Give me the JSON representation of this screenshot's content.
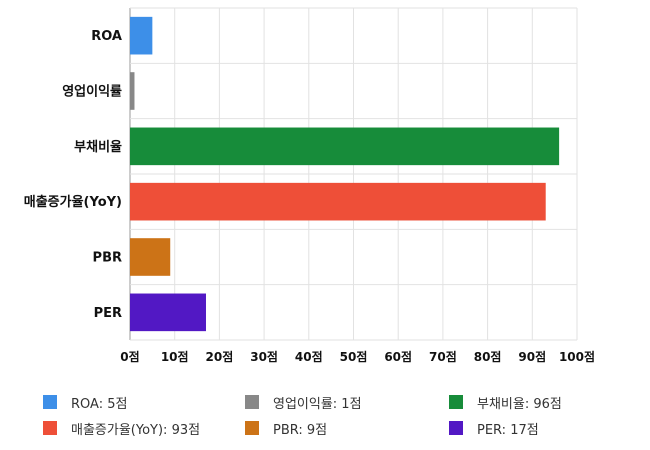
{
  "chart_data": {
    "type": "bar",
    "orientation": "horizontal",
    "categories": [
      "ROA",
      "영업이익률",
      "부채비율",
      "매출증가율(YoY)",
      "PBR",
      "PER"
    ],
    "values": [
      5,
      1,
      96,
      93,
      9,
      17
    ],
    "colors": [
      "#3d8fe8",
      "#888888",
      "#178c3a",
      "#ee4f38",
      "#cc7317",
      "#5218c4"
    ],
    "unit": "점",
    "xlim": [
      0,
      100
    ],
    "xticks": [
      0,
      10,
      20,
      30,
      40,
      50,
      60,
      70,
      80,
      90,
      100
    ],
    "xtick_labels": [
      "0점",
      "10점",
      "20점",
      "30점",
      "40점",
      "50점",
      "60점",
      "70점",
      "80점",
      "90점",
      "100점"
    ],
    "grid": true,
    "legend_position": "bottom",
    "legend": [
      {
        "label": "ROA: 5점",
        "color": "#3d8fe8"
      },
      {
        "label": "영업이익률: 1점",
        "color": "#888888"
      },
      {
        "label": "부채비율: 96점",
        "color": "#178c3a"
      },
      {
        "label": "매출증가율(YoY): 93점",
        "color": "#ee4f38"
      },
      {
        "label": "PBR: 9점",
        "color": "#cc7317"
      },
      {
        "label": "PER: 17점",
        "color": "#5218c4"
      }
    ]
  }
}
